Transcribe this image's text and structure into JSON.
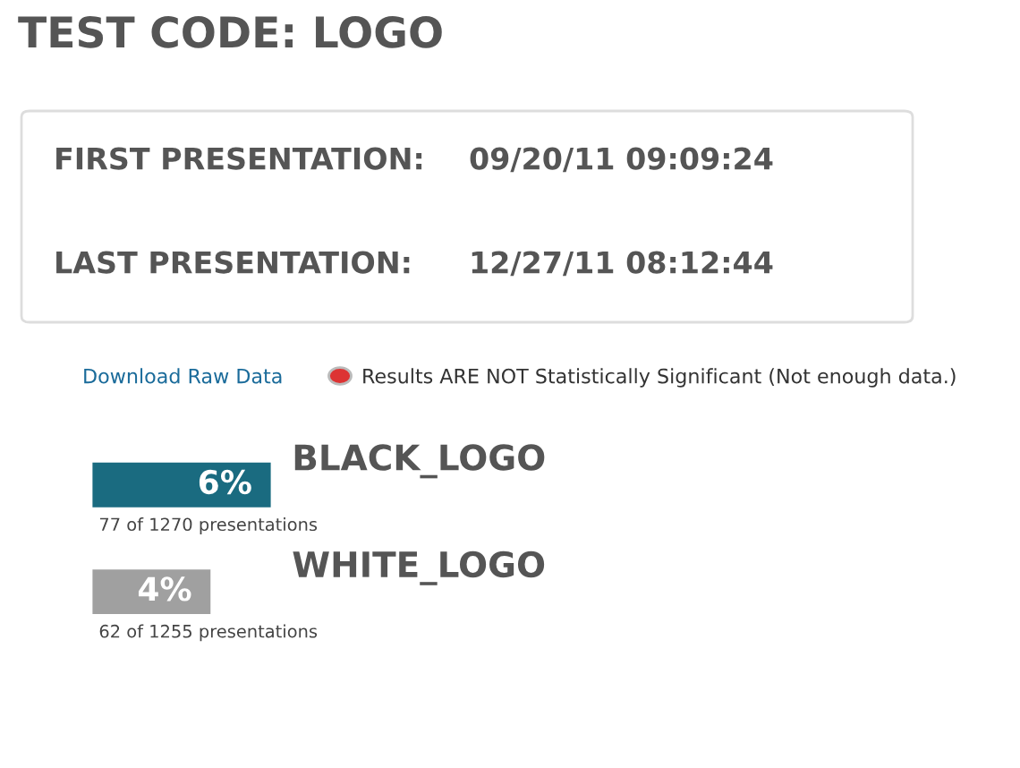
{
  "chart_data": {
    "type": "bar",
    "orientation": "horizontal",
    "title": "TEST CODE: LOGO",
    "annotations": [
      "FIRST PRESENTATION:",
      "09/20/11 09:09:24",
      "LAST PRESENTATION:",
      "12/27/11 08:12:44",
      "Download Raw Data",
      "Results ARE NOT Statistically Significant (Not enough data.)",
      "77 of 1270 presentations",
      "62 of 1255 presentations"
    ],
    "categories": [
      "BLACK_LOGO",
      "WHITE_LOGO"
    ],
    "values": [
      6,
      4
    ],
    "value_labels": [
      "6%",
      "4%"
    ],
    "colors": [
      "#1a6b80",
      "#a0a0a0"
    ]
  }
}
